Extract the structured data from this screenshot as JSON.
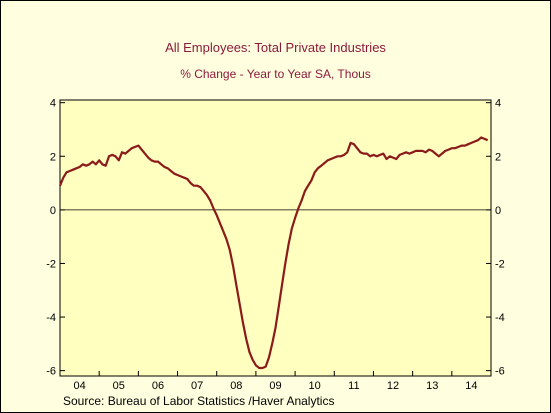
{
  "title": "All Employees: Total Private Industries",
  "subtitle": "% Change - Year to Year    SA, Thous",
  "source": "Source:  Bureau of Labor Statistics /Haver Analytics",
  "colors": {
    "background": "#ffffe0",
    "plot_area": "#ffffc0",
    "line": "#8b1a1a",
    "title": "#8b1a3a"
  },
  "chart_data": {
    "type": "line",
    "title": "All Employees: Total Private Industries",
    "subtitle": "% Change - Year to Year    SA, Thous",
    "xlabel": "",
    "ylabel": "",
    "x_tick_labels": [
      "04",
      "05",
      "06",
      "07",
      "08",
      "09",
      "10",
      "11",
      "12",
      "13",
      "14"
    ],
    "y_ticks": [
      -6,
      -4,
      -2,
      0,
      2,
      4
    ],
    "y_tick_labels": [
      "-6",
      "-4",
      "-2",
      "0",
      "2",
      "4"
    ],
    "ylim": [
      -6.2,
      4.1
    ],
    "xlim": [
      2004.0,
      2015.0
    ],
    "grid": false,
    "zero_line": true,
    "dual_y_axis": true,
    "legend": "none",
    "series": [
      {
        "x": [
          2004.0,
          2004.083,
          2004.167,
          2004.25,
          2004.333,
          2004.417,
          2004.5,
          2004.583,
          2004.667,
          2004.75,
          2004.833,
          2004.917,
          2005.0,
          2005.083,
          2005.167,
          2005.25,
          2005.333,
          2005.417,
          2005.5,
          2005.583,
          2005.667,
          2005.75,
          2005.833,
          2005.917,
          2006.0,
          2006.083,
          2006.167,
          2006.25,
          2006.333,
          2006.417,
          2006.5,
          2006.583,
          2006.667,
          2006.75,
          2006.833,
          2006.917,
          2007.0,
          2007.083,
          2007.167,
          2007.25,
          2007.333,
          2007.417,
          2007.5,
          2007.583,
          2007.667,
          2007.75,
          2007.833,
          2007.917,
          2008.0,
          2008.083,
          2008.167,
          2008.25,
          2008.333,
          2008.417,
          2008.5,
          2008.583,
          2008.667,
          2008.75,
          2008.833,
          2008.917,
          2009.0,
          2009.083,
          2009.167,
          2009.25,
          2009.333,
          2009.417,
          2009.5,
          2009.583,
          2009.667,
          2009.75,
          2009.833,
          2009.917,
          2010.0,
          2010.083,
          2010.167,
          2010.25,
          2010.333,
          2010.417,
          2010.5,
          2010.583,
          2010.667,
          2010.75,
          2010.833,
          2010.917,
          2011.0,
          2011.083,
          2011.167,
          2011.25,
          2011.333,
          2011.417,
          2011.5,
          2011.583,
          2011.667,
          2011.75,
          2011.833,
          2011.917,
          2012.0,
          2012.083,
          2012.167,
          2012.25,
          2012.333,
          2012.417,
          2012.5,
          2012.583,
          2012.667,
          2012.75,
          2012.833,
          2012.917,
          2013.0,
          2013.083,
          2013.167,
          2013.25,
          2013.333,
          2013.417,
          2013.5,
          2013.583,
          2013.667,
          2013.75,
          2013.833,
          2013.917,
          2014.0,
          2014.083,
          2014.167,
          2014.25,
          2014.333,
          2014.417,
          2014.5,
          2014.583,
          2014.667,
          2014.75,
          2014.833,
          2014.917
        ],
        "y": [
          0.9,
          1.2,
          1.4,
          1.45,
          1.5,
          1.55,
          1.6,
          1.7,
          1.65,
          1.7,
          1.8,
          1.7,
          1.85,
          1.7,
          1.65,
          2.0,
          2.05,
          2.0,
          1.85,
          2.15,
          2.1,
          2.2,
          2.3,
          2.35,
          2.4,
          2.25,
          2.1,
          1.95,
          1.85,
          1.8,
          1.8,
          1.7,
          1.6,
          1.55,
          1.45,
          1.35,
          1.3,
          1.25,
          1.2,
          1.15,
          1.0,
          0.9,
          0.9,
          0.85,
          0.7,
          0.55,
          0.35,
          0.05,
          -0.2,
          -0.5,
          -0.8,
          -1.1,
          -1.5,
          -2.1,
          -2.8,
          -3.5,
          -4.2,
          -4.8,
          -5.3,
          -5.6,
          -5.8,
          -5.9,
          -5.9,
          -5.85,
          -5.5,
          -5.0,
          -4.4,
          -3.6,
          -2.8,
          -2.0,
          -1.3,
          -0.7,
          -0.3,
          0.05,
          0.35,
          0.7,
          0.9,
          1.1,
          1.4,
          1.55,
          1.65,
          1.75,
          1.85,
          1.9,
          1.95,
          2.0,
          2.0,
          2.05,
          2.15,
          2.5,
          2.45,
          2.3,
          2.15,
          2.1,
          2.1,
          2.0,
          2.05,
          2.0,
          2.05,
          2.1,
          1.9,
          2.0,
          1.95,
          1.9,
          2.05,
          2.1,
          2.15,
          2.1,
          2.15,
          2.2,
          2.2,
          2.2,
          2.15,
          2.25,
          2.2,
          2.1,
          2.0,
          2.1,
          2.2,
          2.25,
          2.3,
          2.3,
          2.35,
          2.4,
          2.4,
          2.45,
          2.5,
          2.55,
          2.6,
          2.7,
          2.65,
          2.6
        ]
      }
    ]
  }
}
